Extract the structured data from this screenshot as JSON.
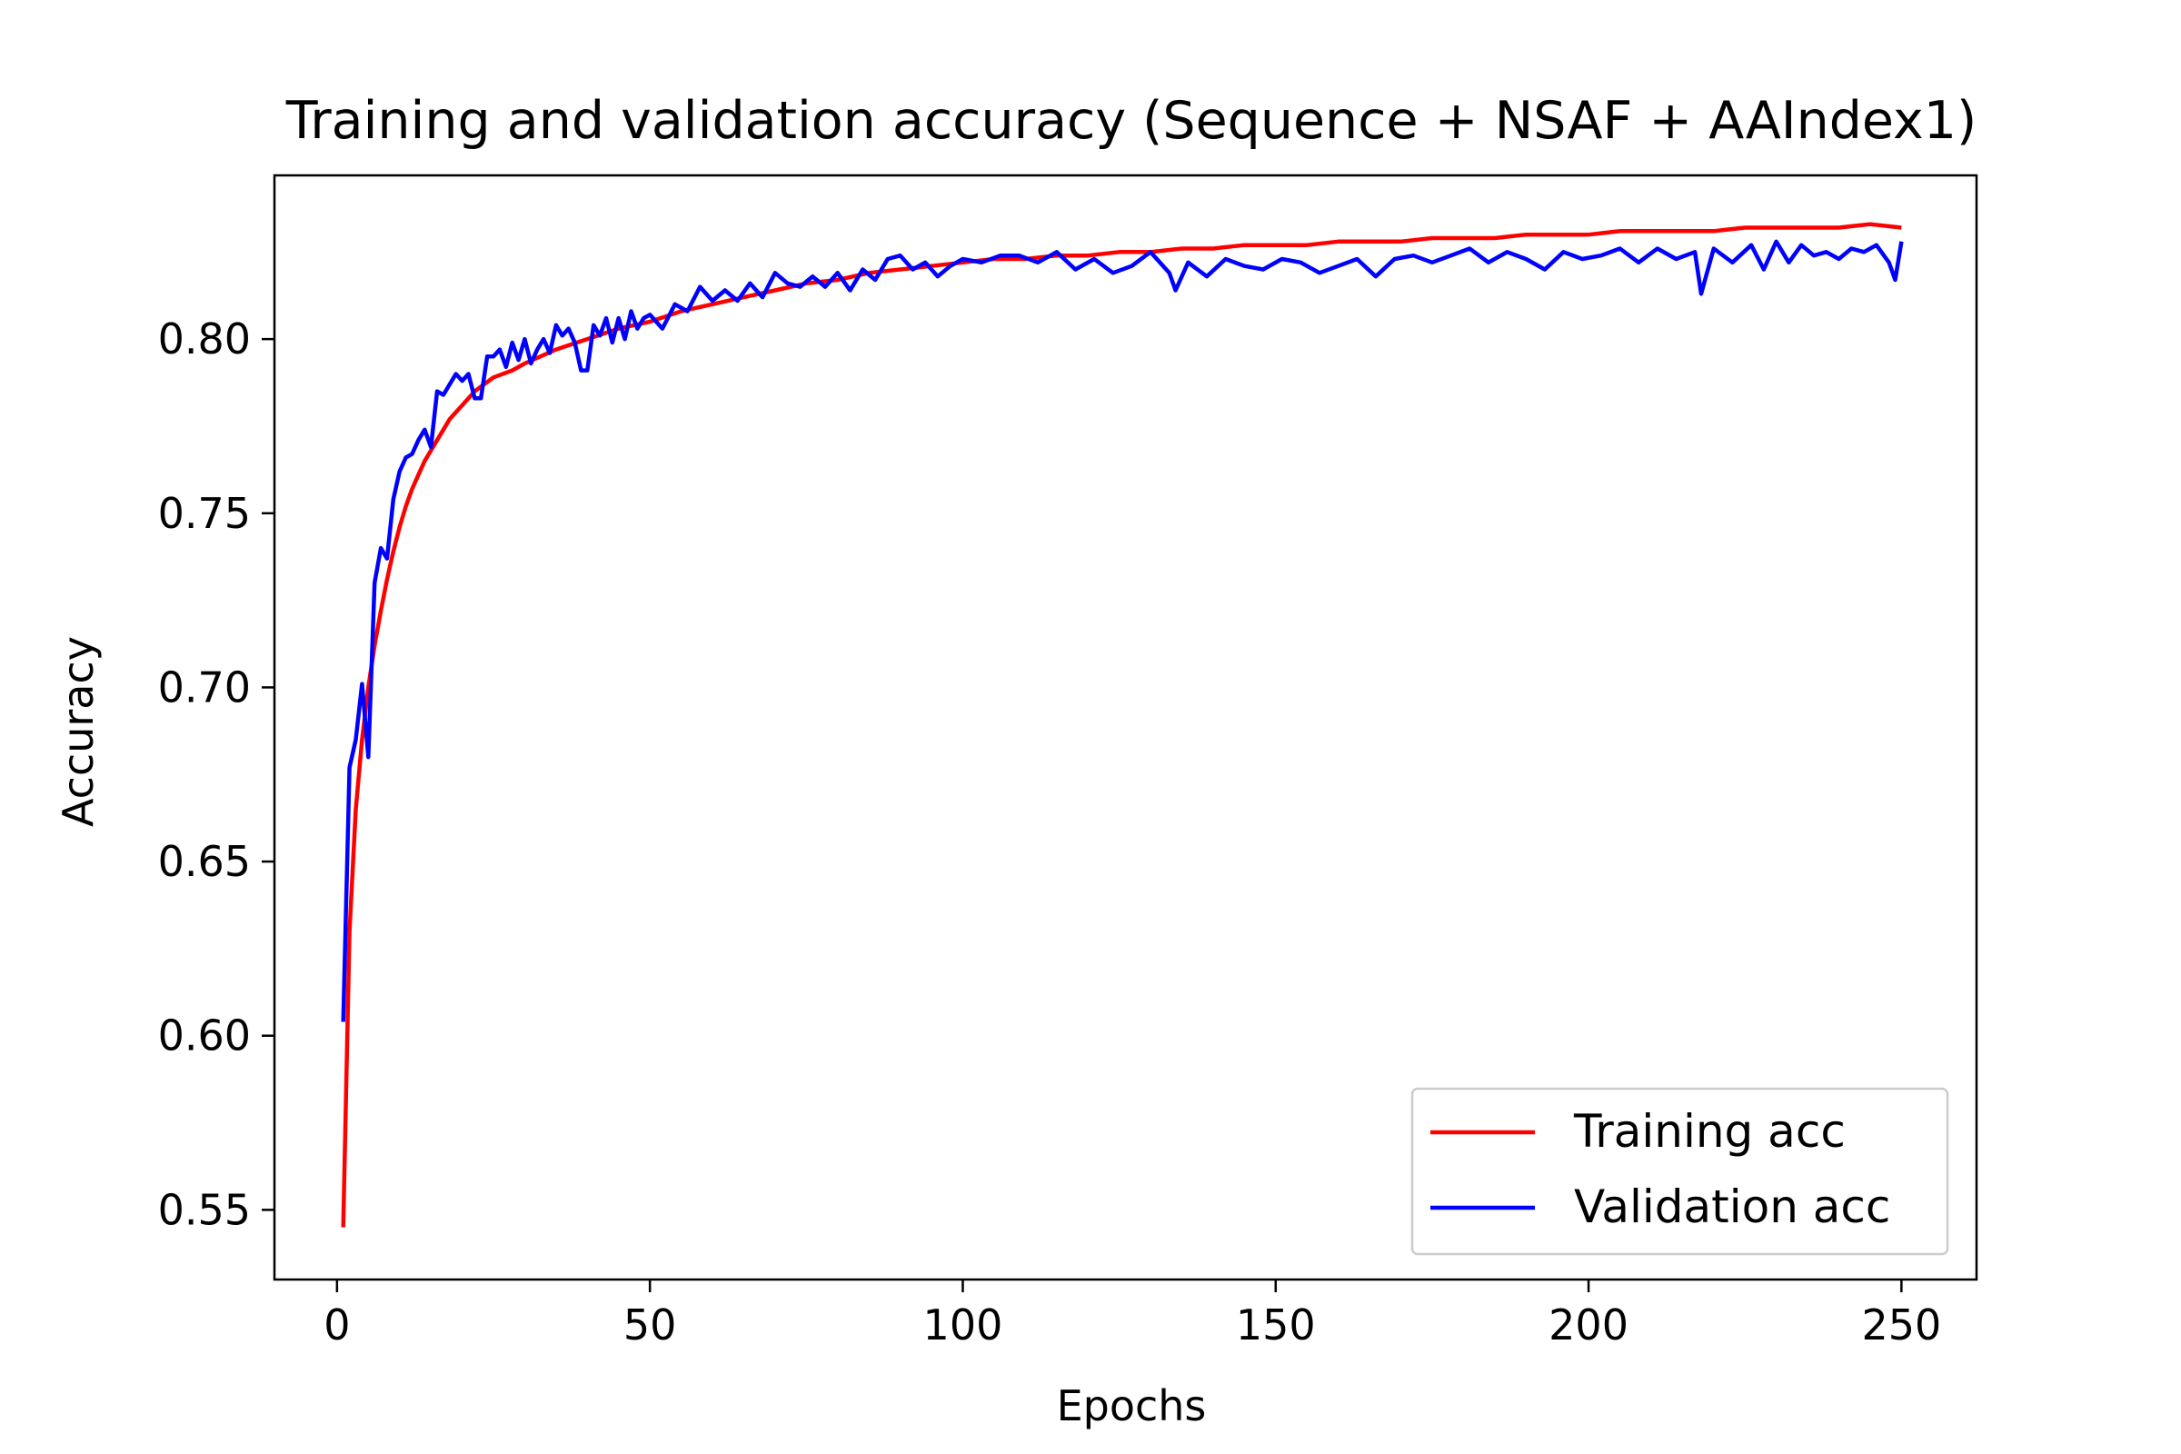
{
  "chart_data": {
    "type": "line",
    "title": "Training and validation accuracy (Sequence + NSAF + AAIndex1)",
    "xlabel": "Epochs",
    "ylabel": "Accuracy",
    "xlim": [
      -10,
      262
    ],
    "ylim": [
      0.53,
      0.847
    ],
    "xticks": [
      0,
      50,
      100,
      150,
      200,
      250
    ],
    "xtick_labels": [
      "0",
      "50",
      "100",
      "150",
      "200",
      "250"
    ],
    "yticks": [
      0.55,
      0.6,
      0.65,
      0.7,
      0.75,
      0.8
    ],
    "ytick_labels": [
      "0.55",
      "0.60",
      "0.65",
      "0.70",
      "0.75",
      "0.80"
    ],
    "grid": false,
    "legend_position": "lower-right",
    "series": [
      {
        "name": "Training acc",
        "color": "#ff0000",
        "x": [
          1,
          2,
          3,
          4,
          5,
          6,
          7,
          8,
          9,
          10,
          11,
          12,
          13,
          14,
          15,
          16,
          17,
          18,
          19,
          20,
          22,
          25,
          28,
          30,
          35,
          40,
          45,
          50,
          55,
          60,
          65,
          70,
          75,
          80,
          85,
          90,
          95,
          100,
          105,
          110,
          115,
          120,
          125,
          130,
          135,
          140,
          145,
          150,
          155,
          160,
          165,
          170,
          175,
          180,
          185,
          190,
          195,
          200,
          205,
          210,
          215,
          220,
          225,
          230,
          235,
          240,
          245,
          250
        ],
        "y": [
          0.545,
          0.63,
          0.665,
          0.685,
          0.7,
          0.712,
          0.722,
          0.731,
          0.739,
          0.746,
          0.752,
          0.757,
          0.761,
          0.765,
          0.768,
          0.771,
          0.774,
          0.777,
          0.779,
          0.781,
          0.785,
          0.789,
          0.791,
          0.793,
          0.797,
          0.8,
          0.803,
          0.805,
          0.808,
          0.81,
          0.812,
          0.814,
          0.816,
          0.817,
          0.819,
          0.82,
          0.821,
          0.822,
          0.823,
          0.823,
          0.824,
          0.824,
          0.825,
          0.825,
          0.826,
          0.826,
          0.827,
          0.827,
          0.827,
          0.828,
          0.828,
          0.828,
          0.829,
          0.829,
          0.829,
          0.83,
          0.83,
          0.83,
          0.831,
          0.831,
          0.831,
          0.831,
          0.832,
          0.832,
          0.832,
          0.832,
          0.833,
          0.832
        ]
      },
      {
        "name": "Validation acc",
        "color": "#0000ff",
        "x": [
          1,
          2,
          3,
          4,
          5,
          6,
          7,
          8,
          9,
          10,
          11,
          12,
          13,
          14,
          15,
          16,
          17,
          18,
          19,
          20,
          21,
          22,
          23,
          24,
          25,
          26,
          27,
          28,
          29,
          30,
          31,
          32,
          33,
          34,
          35,
          36,
          37,
          38,
          39,
          40,
          41,
          42,
          43,
          44,
          45,
          46,
          47,
          48,
          49,
          50,
          52,
          54,
          56,
          58,
          60,
          62,
          64,
          66,
          68,
          70,
          72,
          74,
          76,
          78,
          80,
          82,
          84,
          86,
          88,
          90,
          92,
          94,
          96,
          98,
          100,
          103,
          106,
          109,
          112,
          115,
          118,
          121,
          124,
          127,
          130,
          133,
          134,
          136,
          139,
          142,
          145,
          148,
          151,
          154,
          157,
          160,
          163,
          166,
          169,
          172,
          175,
          178,
          181,
          184,
          187,
          190,
          193,
          196,
          199,
          202,
          205,
          208,
          211,
          214,
          217,
          218,
          220,
          223,
          226,
          228,
          230,
          232,
          234,
          236,
          238,
          240,
          242,
          244,
          246,
          248,
          249,
          250
        ],
        "y": [
          0.604,
          0.677,
          0.685,
          0.701,
          0.68,
          0.73,
          0.74,
          0.737,
          0.754,
          0.762,
          0.766,
          0.767,
          0.771,
          0.774,
          0.769,
          0.785,
          0.784,
          0.787,
          0.79,
          0.788,
          0.79,
          0.783,
          0.783,
          0.795,
          0.795,
          0.797,
          0.792,
          0.799,
          0.794,
          0.8,
          0.793,
          0.797,
          0.8,
          0.796,
          0.804,
          0.801,
          0.803,
          0.799,
          0.791,
          0.791,
          0.804,
          0.801,
          0.806,
          0.799,
          0.806,
          0.8,
          0.808,
          0.803,
          0.806,
          0.807,
          0.803,
          0.81,
          0.808,
          0.815,
          0.811,
          0.814,
          0.811,
          0.816,
          0.812,
          0.819,
          0.816,
          0.815,
          0.818,
          0.815,
          0.819,
          0.814,
          0.82,
          0.817,
          0.823,
          0.824,
          0.82,
          0.822,
          0.818,
          0.821,
          0.823,
          0.822,
          0.824,
          0.824,
          0.822,
          0.825,
          0.82,
          0.823,
          0.819,
          0.821,
          0.825,
          0.819,
          0.814,
          0.822,
          0.818,
          0.823,
          0.821,
          0.82,
          0.823,
          0.822,
          0.819,
          0.821,
          0.823,
          0.818,
          0.823,
          0.824,
          0.822,
          0.824,
          0.826,
          0.822,
          0.825,
          0.823,
          0.82,
          0.825,
          0.823,
          0.824,
          0.826,
          0.822,
          0.826,
          0.823,
          0.825,
          0.813,
          0.826,
          0.822,
          0.827,
          0.82,
          0.828,
          0.822,
          0.827,
          0.824,
          0.825,
          0.823,
          0.826,
          0.825,
          0.827,
          0.822,
          0.817,
          0.828
        ]
      }
    ]
  }
}
